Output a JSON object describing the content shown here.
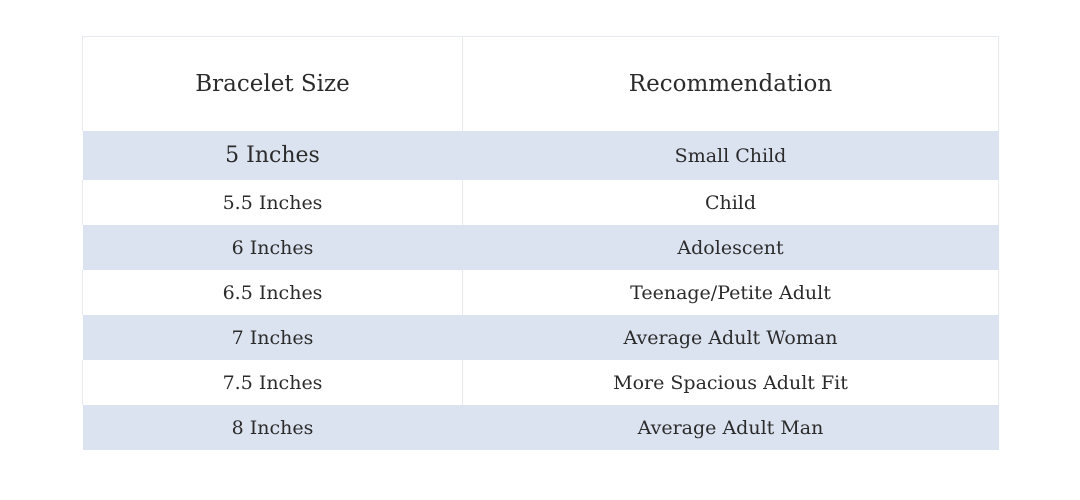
{
  "table": {
    "headers": [
      "Bracelet Size",
      "Recommendation"
    ],
    "rows": [
      {
        "size": "5 Inches",
        "recommendation": "Small Child"
      },
      {
        "size": "5.5 Inches",
        "recommendation": "Child"
      },
      {
        "size": "6 Inches",
        "recommendation": "Adolescent"
      },
      {
        "size": "6.5 Inches",
        "recommendation": "Teenage/Petite Adult"
      },
      {
        "size": "7 Inches",
        "recommendation": "Average Adult Woman"
      },
      {
        "size": "7.5 Inches",
        "recommendation": "More Spacious Adult Fit"
      },
      {
        "size": "8 Inches",
        "recommendation": "Average Adult Man"
      }
    ],
    "colors": {
      "shaded_row": "#dce3f0",
      "plain_row": "#ffffff",
      "border": "#e6e9ef",
      "text": "#2b2b2b"
    }
  }
}
